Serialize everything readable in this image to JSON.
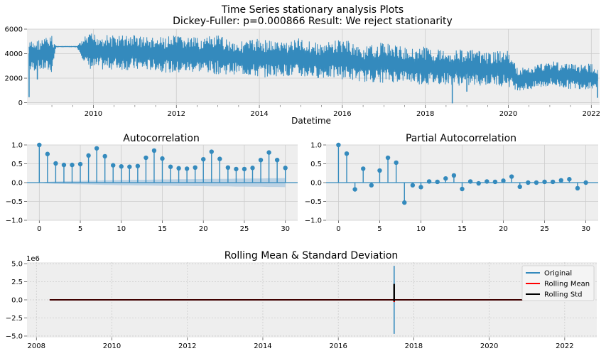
{
  "figure": {
    "title_line1": "Time Series stationary analysis Plots",
    "title_line2": "Dickey-Fuller: p=0.000866 Result: We reject stationarity"
  },
  "colors": {
    "series": "#348abd",
    "panel_bg": "#eeeeee",
    "grid": "#cccccc",
    "rolling_mean": "#ff0000",
    "rolling_std": "#000000",
    "confidence_band": "#a9c8e0"
  },
  "chart_data": [
    {
      "type": "line",
      "id": "timeseries",
      "xlabel": "Datetime",
      "ylabel": "",
      "x_range": [
        2008.4,
        2022.2
      ],
      "ylim": [
        -200,
        6000
      ],
      "x_ticks": [
        2010,
        2012,
        2014,
        2016,
        2018,
        2020,
        2022
      ],
      "x_tick_labels": [
        "2010",
        "2012",
        "2014",
        "2016",
        "2018",
        "2020",
        "2022"
      ],
      "y_ticks": [
        0,
        2000,
        4000,
        6000
      ],
      "y_tick_labels": [
        "0",
        "2000",
        "4000",
        "6000"
      ],
      "grid": true,
      "envelope": {
        "x": [
          2008.45,
          2008.7,
          2009.0,
          2009.1,
          2009.6,
          2009.85,
          2010.0,
          2010.5,
          2011.0,
          2011.5,
          2012.0,
          2012.5,
          2013.0,
          2013.5,
          2014.0,
          2014.5,
          2015.0,
          2015.5,
          2016.0,
          2016.5,
          2017.0,
          2017.5,
          2018.0,
          2018.5,
          2019.0,
          2019.5,
          2020.0,
          2020.2,
          2020.5,
          2021.0,
          2021.5,
          2022.0,
          2022.15
        ],
        "upper": [
          5000,
          5200,
          5500,
          4600,
          4600,
          5600,
          5700,
          5500,
          5600,
          5300,
          5500,
          5300,
          5500,
          5000,
          5300,
          5000,
          5300,
          4800,
          5300,
          4500,
          5000,
          4500,
          4600,
          4300,
          4400,
          4100,
          4300,
          2900,
          2900,
          3500,
          3200,
          3200,
          2900
        ],
        "lower": [
          2500,
          2600,
          2400,
          4550,
          4550,
          2800,
          2600,
          2700,
          2600,
          2600,
          2300,
          2500,
          2300,
          2300,
          2000,
          2200,
          2000,
          2000,
          1900,
          1700,
          1600,
          1700,
          1400,
          1500,
          1300,
          1400,
          1300,
          1000,
          1000,
          1300,
          1100,
          1100,
          1200
        ]
      },
      "spikes": [
        {
          "x": 2008.45,
          "low": 450
        },
        {
          "x": 2008.65,
          "low": 1900
        },
        {
          "x": 2018.65,
          "low": -50
        },
        {
          "x": 2019.0,
          "low": 900
        },
        {
          "x": 2022.15,
          "low": 400
        }
      ]
    },
    {
      "type": "stem",
      "id": "acf",
      "title": "Autocorrelation",
      "x_range": [
        -1.5,
        31.5
      ],
      "ylim": [
        -1.0,
        1.0
      ],
      "x_ticks": [
        0,
        5,
        10,
        15,
        20,
        25,
        30
      ],
      "x_tick_labels": [
        "0",
        "5",
        "10",
        "15",
        "20",
        "25",
        "30"
      ],
      "y_ticks": [
        -1.0,
        -0.5,
        0.0,
        0.5,
        1.0
      ],
      "y_tick_labels": [
        "−1.0",
        "−0.5",
        "0.0",
        "0.5",
        "1.0"
      ],
      "lags": [
        0,
        1,
        2,
        3,
        4,
        5,
        6,
        7,
        8,
        9,
        10,
        11,
        12,
        13,
        14,
        15,
        16,
        17,
        18,
        19,
        20,
        21,
        22,
        23,
        24,
        25,
        26,
        27,
        28,
        29,
        30
      ],
      "values": [
        1.0,
        0.76,
        0.51,
        0.47,
        0.47,
        0.49,
        0.72,
        0.91,
        0.7,
        0.46,
        0.43,
        0.42,
        0.44,
        0.66,
        0.85,
        0.64,
        0.42,
        0.38,
        0.37,
        0.4,
        0.62,
        0.82,
        0.63,
        0.4,
        0.36,
        0.36,
        0.39,
        0.6,
        0.8,
        0.6,
        0.39
      ],
      "confidence": [
        0.0,
        0.02,
        0.03,
        0.035,
        0.04,
        0.045,
        0.05,
        0.055,
        0.06,
        0.065,
        0.07,
        0.07,
        0.075,
        0.075,
        0.08,
        0.085,
        0.085,
        0.09,
        0.09,
        0.095,
        0.095,
        0.1,
        0.1,
        0.1,
        0.105,
        0.105,
        0.11,
        0.11,
        0.115,
        0.115,
        0.12
      ]
    },
    {
      "type": "stem",
      "id": "pacf",
      "title": "Partial Autocorrelation",
      "x_range": [
        -1.5,
        31.5
      ],
      "ylim": [
        -1.0,
        1.0
      ],
      "x_ticks": [
        0,
        5,
        10,
        15,
        20,
        25,
        30
      ],
      "x_tick_labels": [
        "0",
        "5",
        "10",
        "15",
        "20",
        "25",
        "30"
      ],
      "y_ticks": [
        -1.0,
        -0.5,
        0.0,
        0.5,
        1.0
      ],
      "y_tick_labels": [
        "−1.0",
        "−0.5",
        "0.0",
        "0.5",
        "1.0"
      ],
      "lags": [
        0,
        1,
        2,
        3,
        4,
        5,
        6,
        7,
        8,
        9,
        10,
        11,
        12,
        13,
        14,
        15,
        16,
        17,
        18,
        19,
        20,
        21,
        22,
        23,
        24,
        25,
        26,
        27,
        28,
        29,
        30
      ],
      "values": [
        1.0,
        0.77,
        -0.18,
        0.37,
        -0.07,
        0.32,
        0.66,
        0.53,
        -0.53,
        -0.07,
        -0.12,
        0.03,
        0.02,
        0.11,
        0.19,
        -0.17,
        0.03,
        -0.02,
        0.03,
        0.02,
        0.05,
        0.16,
        -0.11,
        0.0,
        0.0,
        0.02,
        0.02,
        0.06,
        0.09,
        -0.15,
        0.0
      ]
    },
    {
      "type": "line",
      "id": "rolling",
      "title": "Rolling Mean & Standard Deviation",
      "x_range": [
        2007.75,
        2022.85
      ],
      "ylim": [
        -5.2,
        5.2
      ],
      "y_scale_label": "1e6",
      "x_ticks": [
        2008,
        2010,
        2012,
        2014,
        2016,
        2018,
        2020,
        2022
      ],
      "x_tick_labels": [
        "2008",
        "2010",
        "2012",
        "2014",
        "2016",
        "2018",
        "2020",
        "2022"
      ],
      "y_ticks": [
        -5.0,
        -2.5,
        0.0,
        2.5,
        5.0
      ],
      "y_tick_labels": [
        "−5.0",
        "−2.5",
        "0.0",
        "2.5",
        "5.0"
      ],
      "grid": true,
      "legend_position": "top-right",
      "series": [
        {
          "name": "Original",
          "color": "#348abd",
          "x": [
            2008.35,
            2022.15
          ],
          "y": [
            0,
            0
          ],
          "spike": {
            "x": 2017.48,
            "low": -4.7,
            "high": 4.7
          }
        },
        {
          "name": "Rolling Mean",
          "color": "#ff0000",
          "x": [
            2008.35,
            2022.15
          ],
          "y": [
            0,
            0
          ],
          "spike": {
            "x": 2017.48,
            "low": -0.3,
            "high": 0.3
          }
        },
        {
          "name": "Rolling Std",
          "color": "#000000",
          "x": [
            2008.35,
            2020.9
          ],
          "y": [
            0,
            0
          ],
          "spike": {
            "x": 2017.48,
            "low": -0.2,
            "high": 2.2
          }
        }
      ]
    }
  ]
}
